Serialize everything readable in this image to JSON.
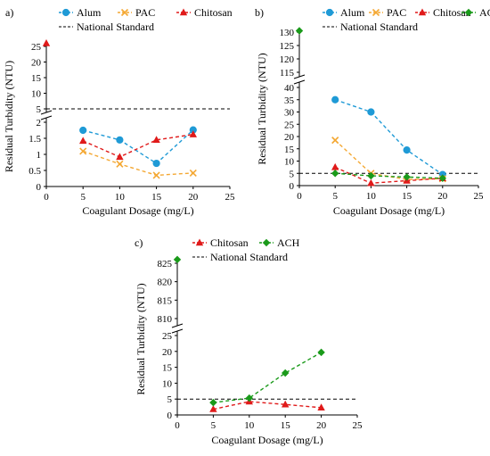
{
  "figure": {
    "panel_labels": [
      "a)",
      "b)",
      "c)"
    ]
  },
  "chart_data": [
    {
      "type": "line",
      "panel": "a)",
      "xlabel": "Coagulant Dosage (mg/L)",
      "ylabel": "Residual Turbidity (NTU)",
      "x_ticks": [
        0,
        5,
        10,
        15,
        20,
        25
      ],
      "y_ticks_lower": [
        0,
        0.5,
        1,
        1.5,
        2
      ],
      "y_ticks_upper": [
        5,
        10,
        15,
        20,
        25
      ],
      "axis_break": true,
      "national_standard": 5,
      "series": [
        {
          "name": "Alum",
          "color": "#1f9ad6",
          "marker": "circle",
          "x": [
            5,
            10,
            15,
            20
          ],
          "y": [
            1.75,
            1.45,
            0.72,
            1.76
          ]
        },
        {
          "name": "PAC",
          "color": "#f4a833",
          "marker": "x",
          "x": [
            5,
            10,
            15,
            20
          ],
          "y": [
            1.1,
            0.7,
            0.35,
            0.42
          ]
        },
        {
          "name": "Chitosan",
          "color": "#e01a1a",
          "marker": "triangle",
          "x": [
            0,
            5,
            10,
            15,
            20
          ],
          "y": [
            26,
            1.42,
            0.92,
            1.45,
            1.62
          ]
        }
      ],
      "legend": [
        "Alum",
        "PAC",
        "Chitosan",
        "National Standard"
      ]
    },
    {
      "type": "line",
      "panel": "b)",
      "xlabel": "Coagulant Dosage (mg/L)",
      "ylabel": "Residual Turbidity (NTU)",
      "x_ticks": [
        0,
        5,
        10,
        15,
        20,
        25
      ],
      "y_ticks_lower": [
        0,
        5,
        10,
        15,
        20,
        25,
        30,
        35,
        40
      ],
      "y_ticks_upper": [
        115,
        120,
        125,
        130
      ],
      "axis_break": true,
      "national_standard": 5,
      "series": [
        {
          "name": "Alum",
          "color": "#1f9ad6",
          "marker": "circle",
          "x": [
            5,
            10,
            15,
            20
          ],
          "y": [
            35,
            30,
            14.5,
            4.5
          ]
        },
        {
          "name": "PAC",
          "color": "#f4a833",
          "marker": "x",
          "x": [
            5,
            10,
            15,
            20
          ],
          "y": [
            18.5,
            5,
            2.5,
            2.8
          ]
        },
        {
          "name": "Chitosan",
          "color": "#e01a1a",
          "marker": "triangle",
          "x": [
            5,
            10,
            15,
            20
          ],
          "y": [
            7.5,
            1,
            2,
            3
          ]
        },
        {
          "name": "ACH",
          "color": "#1a9a1a",
          "marker": "diamond",
          "x": [
            0,
            5,
            10,
            15,
            20
          ],
          "y": [
            130.5,
            5,
            4,
            3.5,
            3
          ]
        }
      ],
      "legend": [
        "Alum",
        "PAC",
        "Chitosan",
        "ACH",
        "National Standard"
      ]
    },
    {
      "type": "line",
      "panel": "c)",
      "xlabel": "Coagulant Dosage (mg/L)",
      "ylabel": "Residual Turbidity (NTU)",
      "x_ticks": [
        0,
        5,
        10,
        15,
        20,
        25
      ],
      "y_ticks_lower": [
        0,
        5,
        10,
        15,
        20,
        25
      ],
      "y_ticks_upper": [
        810,
        815,
        820,
        825
      ],
      "axis_break": true,
      "national_standard": 5,
      "series": [
        {
          "name": "Chitosan",
          "color": "#e01a1a",
          "marker": "triangle",
          "x": [
            5,
            10,
            15,
            20
          ],
          "y": [
            1.8,
            4.2,
            3.3,
            2.3
          ]
        },
        {
          "name": "ACH",
          "color": "#1a9a1a",
          "marker": "diamond",
          "x": [
            0,
            5,
            10,
            15,
            20
          ],
          "y": [
            826,
            3.9,
            5.3,
            13.2,
            19.7
          ]
        }
      ],
      "legend": [
        "Chitosan",
        "ACH",
        "National Standard"
      ]
    }
  ],
  "legend_standard_label": "National Standard"
}
